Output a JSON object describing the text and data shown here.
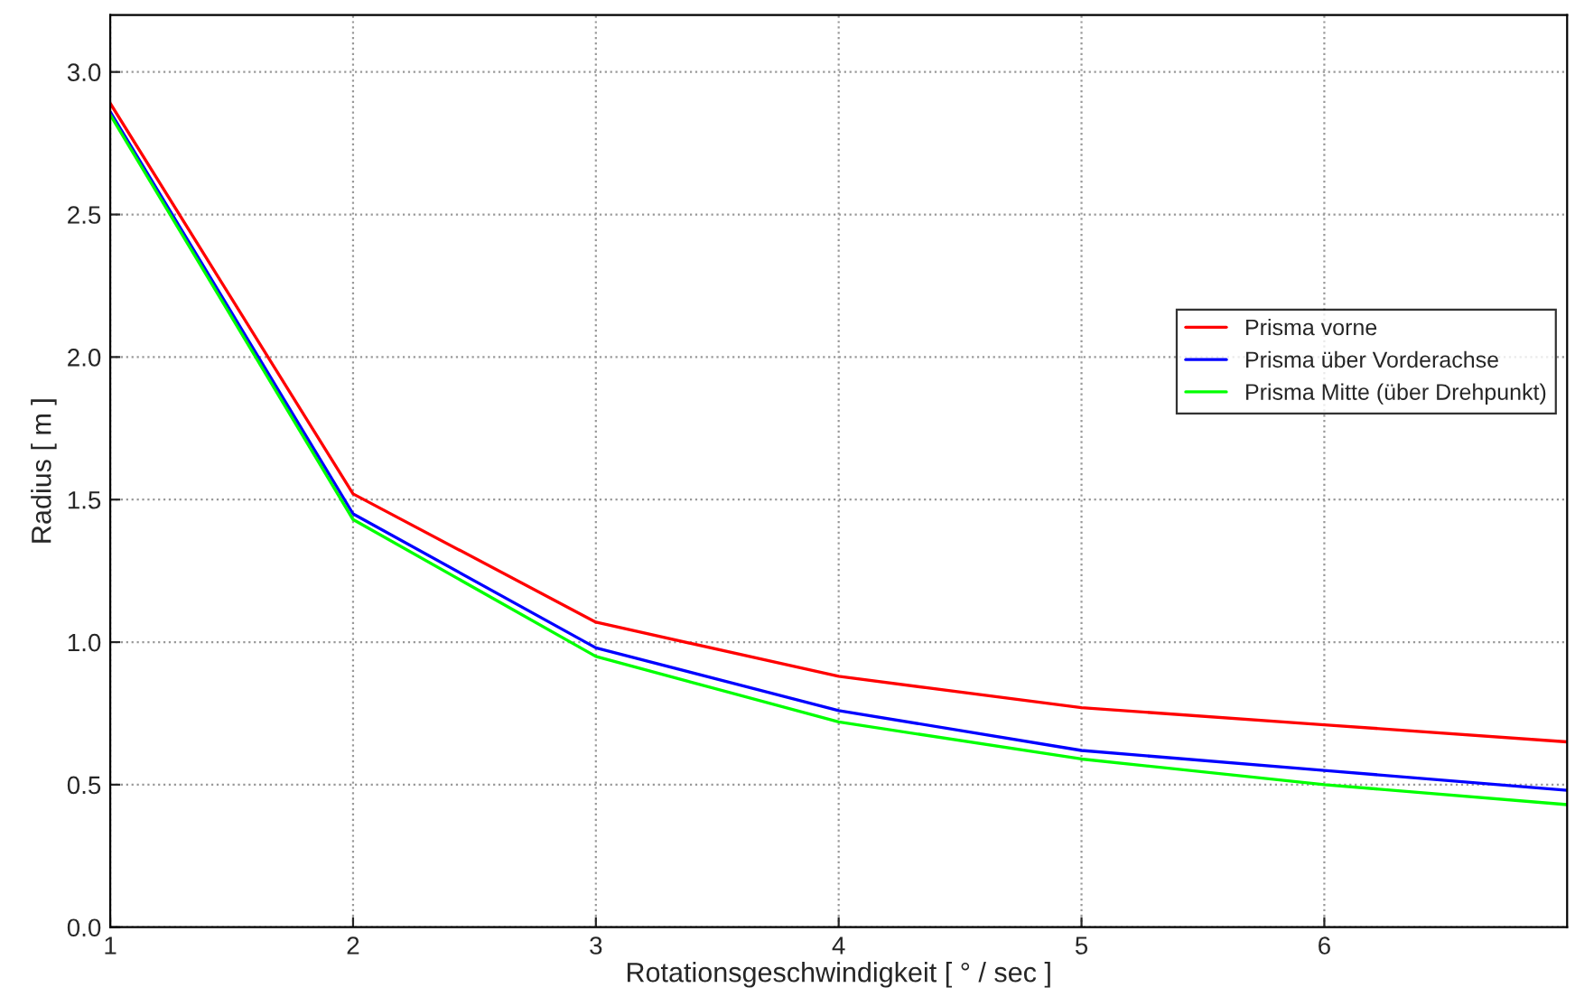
{
  "chart_data": {
    "type": "line",
    "xlabel": "Rotationsgeschwindigkeit [ ° / sec ]",
    "ylabel": "Radius [ m ]",
    "x": [
      1,
      2,
      3,
      4,
      5,
      6,
      7
    ],
    "series": [
      {
        "name": "Prisma vorne",
        "color": "#ff0000",
        "values": [
          2.89,
          1.52,
          1.07,
          0.88,
          0.77,
          0.71,
          0.65
        ]
      },
      {
        "name": "Prisma über Vorderachse",
        "color": "#0000ff",
        "values": [
          2.86,
          1.45,
          0.98,
          0.76,
          0.62,
          0.55,
          0.48
        ]
      },
      {
        "name": "Prisma Mitte (über Drehpunkt)",
        "color": "#00ff00",
        "values": [
          2.85,
          1.43,
          0.95,
          0.72,
          0.59,
          0.5,
          0.43
        ]
      }
    ],
    "xlim": [
      1,
      7
    ],
    "ylim": [
      0,
      3.2
    ],
    "xticks": [
      1,
      2,
      3,
      4,
      5,
      6
    ],
    "yticks": [
      {
        "value": 0,
        "label": "0.0"
      },
      {
        "value": 0.5,
        "label": "0.5"
      },
      {
        "value": 1,
        "label": "1.0"
      },
      {
        "value": 1.5,
        "label": "1.5"
      },
      {
        "value": 2,
        "label": "2.0"
      },
      {
        "value": 2.5,
        "label": "2.5"
      },
      {
        "value": 3,
        "label": "3.0"
      }
    ],
    "grid": true,
    "legend": "right",
    "marker": "none",
    "line_style": "solid"
  }
}
